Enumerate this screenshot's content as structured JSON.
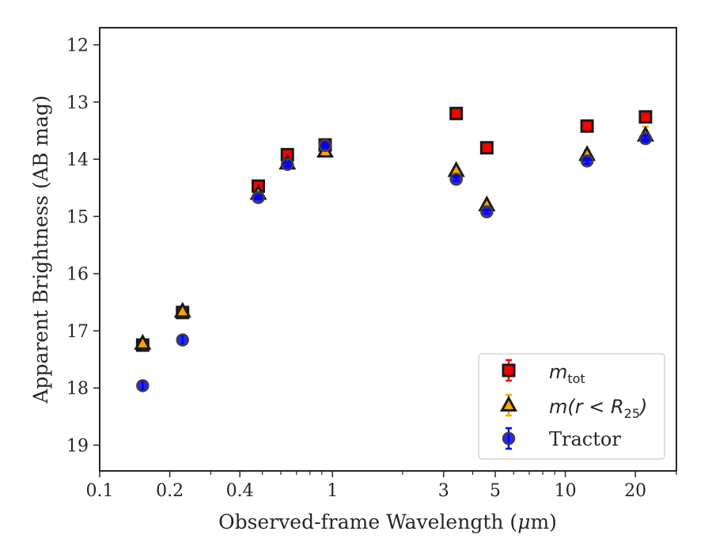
{
  "chart_data": {
    "type": "scatter",
    "xlabel_parts": [
      "Observed-frame Wavelength (",
      "μ",
      "m)"
    ],
    "ylabel": "Apparent Brightness (AB mag)",
    "x_scale": "log",
    "xlim": [
      0.1,
      30
    ],
    "ylim": [
      19.45,
      11.7
    ],
    "y_inverted": true,
    "x_ticks": [
      0.1,
      0.2,
      0.4,
      1,
      3,
      5,
      10,
      20
    ],
    "x_tick_labels": [
      "0.1",
      "0.2",
      "0.4",
      "1",
      "3",
      "5",
      "10",
      "20"
    ],
    "y_ticks": [
      12,
      13,
      14,
      15,
      16,
      17,
      18,
      19
    ],
    "y_tick_labels": [
      "12",
      "13",
      "14",
      "15",
      "16",
      "17",
      "18",
      "19"
    ],
    "grid": false,
    "legend_position": "lower-right",
    "series": [
      {
        "legend": {
          "base": "m",
          "sub": "tot"
        },
        "marker": "square",
        "color": "#ff0000",
        "edge": "#1a1a1a",
        "errcolor": "#ff0000",
        "x": [
          0.153,
          0.227,
          0.48,
          0.64,
          0.93,
          3.4,
          4.6,
          12.4,
          22.1
        ],
        "y": [
          17.25,
          16.68,
          14.47,
          13.92,
          13.75,
          13.2,
          13.8,
          13.42,
          13.26
        ],
        "err": [
          0.05,
          0.05,
          0.03,
          0.03,
          0.03,
          0.03,
          0.03,
          0.05,
          0.08
        ]
      },
      {
        "legend": {
          "prefix": "m",
          "rest": "(r < R",
          "sub": "25",
          "close": ")"
        },
        "marker": "triangle",
        "color": "#ffa500",
        "edge": "#1a1a1a",
        "errcolor": "#ffa500",
        "x": [
          0.153,
          0.227,
          0.48,
          0.64,
          0.93,
          3.4,
          4.6,
          12.4,
          22.1
        ],
        "y": [
          17.22,
          16.66,
          14.6,
          14.07,
          13.86,
          14.2,
          14.8,
          13.92,
          13.58
        ],
        "err": [
          0.05,
          0.05,
          0.03,
          0.03,
          0.03,
          0.03,
          0.03,
          0.08,
          0.15
        ]
      },
      {
        "legend": {
          "text": "Tractor"
        },
        "marker": "circle",
        "color": "#0000ff",
        "edge": "#404040",
        "errcolor": "#0000ff",
        "x": [
          0.153,
          0.227,
          0.48,
          0.64,
          0.93,
          3.4,
          4.6,
          12.4,
          22.1
        ],
        "y": [
          17.96,
          17.16,
          14.67,
          14.09,
          13.76,
          14.35,
          14.92,
          14.03,
          13.64
        ],
        "err": [
          0.08,
          0.08,
          0.03,
          0.03,
          0.03,
          0.03,
          0.03,
          0.05,
          0.06
        ]
      }
    ]
  }
}
